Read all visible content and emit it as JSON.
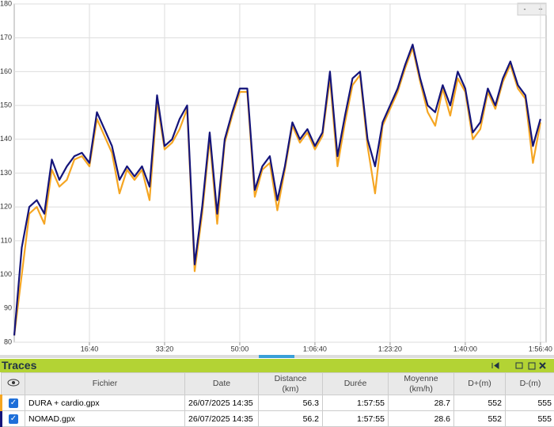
{
  "chart_data": {
    "type": "line",
    "x": [
      0,
      100,
      200,
      300,
      400,
      500,
      600,
      700,
      800,
      900,
      1000,
      1100,
      1200,
      1300,
      1400,
      1500,
      1600,
      1700,
      1800,
      1900,
      2000,
      2100,
      2200,
      2300,
      2400,
      2500,
      2600,
      2700,
      2800,
      2900,
      3000,
      3100,
      3200,
      3300,
      3400,
      3500,
      3600,
      3700,
      3800,
      3900,
      4000,
      4100,
      4200,
      4300,
      4400,
      4500,
      4600,
      4700,
      4800,
      4900,
      5000,
      5100,
      5200,
      5300,
      5400,
      5500,
      5600,
      5700,
      5800,
      5900,
      6000,
      6100,
      6200,
      6300,
      6400,
      6500,
      6600,
      6700,
      6800,
      6900,
      7000
    ],
    "series": [
      {
        "color": "#f5a623",
        "values": [
          82,
          100,
          118,
          120,
          115,
          131,
          126,
          128,
          134,
          135,
          132,
          146,
          141,
          136,
          124,
          131,
          128,
          131,
          122,
          151,
          137,
          139,
          143,
          149,
          101,
          118,
          140,
          115,
          139,
          147,
          154,
          154,
          123,
          131,
          133,
          119,
          131,
          144,
          139,
          142,
          137,
          141,
          158,
          132,
          145,
          156,
          159,
          138,
          124,
          144,
          149,
          154,
          161,
          167,
          157,
          148,
          144,
          155,
          147,
          158,
          154,
          140,
          143,
          154,
          149,
          157,
          162,
          155,
          152,
          133,
          145
        ]
      },
      {
        "color": "#14147a",
        "values": [
          82,
          108,
          120,
          122,
          118,
          134,
          128,
          132,
          135,
          136,
          133,
          148,
          143,
          138,
          128,
          132,
          129,
          132,
          126,
          153,
          138,
          140,
          146,
          150,
          103,
          120,
          142,
          118,
          140,
          148,
          155,
          155,
          125,
          132,
          135,
          122,
          132,
          145,
          140,
          143,
          138,
          142,
          160,
          135,
          147,
          158,
          160,
          140,
          132,
          145,
          150,
          155,
          162,
          168,
          158,
          150,
          148,
          156,
          150,
          160,
          155,
          142,
          145,
          155,
          150,
          158,
          163,
          156,
          153,
          138,
          146
        ]
      }
    ],
    "xlim": [
      0,
      7075
    ],
    "xticks": [
      {
        "value": 1000,
        "label": "16:40"
      },
      {
        "value": 2000,
        "label": "33:20"
      },
      {
        "value": 3000,
        "label": "50:00"
      },
      {
        "value": 4000,
        "label": "1:06:40"
      },
      {
        "value": 5000,
        "label": "1:23:20"
      },
      {
        "value": 6000,
        "label": "1:40:00"
      },
      {
        "value": 7000,
        "label": "1:56:40"
      }
    ],
    "ylim": [
      80,
      180
    ],
    "yticks": [
      80,
      90,
      100,
      110,
      120,
      130,
      140,
      150,
      160,
      170,
      180
    ],
    "grid": true,
    "zoom": [
      "-",
      "+"
    ]
  },
  "panel": {
    "title": "Traces",
    "header": [
      [
        "Fichier"
      ],
      [
        "Date"
      ],
      [
        "Distance",
        "(km)"
      ],
      [
        "Durée"
      ],
      [
        "Moyenne",
        "(km/h)"
      ],
      [
        "D+(m)"
      ],
      [
        "D-(m)"
      ]
    ],
    "rows": [
      [
        "DURA + cardio.gpx",
        "26/07/2025 14:35",
        56.3,
        "1:57:55",
        28.7,
        552,
        555
      ],
      [
        "NOMAD.gpx",
        "26/07/2025 14:35",
        56.2,
        "1:57:55",
        28.6,
        552,
        555
      ]
    ]
  }
}
